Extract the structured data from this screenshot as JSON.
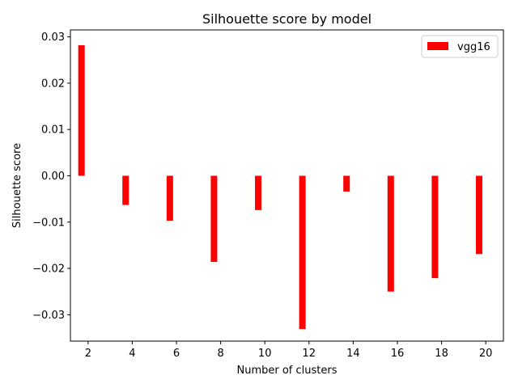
{
  "chart_data": {
    "type": "bar",
    "title": "Silhouette score by model",
    "xlabel": "Number of clusters",
    "ylabel": "Silhouette score",
    "x": [
      1.7,
      3.7,
      5.7,
      7.7,
      9.7,
      11.7,
      13.7,
      15.7,
      17.7,
      19.7
    ],
    "series": [
      {
        "name": "vgg16",
        "color": "#ff0000",
        "values": [
          0.0282,
          -0.0063,
          -0.0097,
          -0.0186,
          -0.0074,
          -0.0331,
          -0.0034,
          -0.025,
          -0.0221,
          -0.0169
        ]
      }
    ],
    "xlim": [
      1.2,
      20.8
    ],
    "ylim": [
      -0.0357,
      0.0315
    ],
    "xticks": [
      2,
      4,
      6,
      8,
      10,
      12,
      14,
      16,
      18,
      20
    ],
    "xtick_labels": [
      "2",
      "4",
      "6",
      "8",
      "10",
      "12",
      "14",
      "16",
      "18",
      "20"
    ],
    "yticks": [
      -0.03,
      -0.02,
      -0.01,
      0.0,
      0.01,
      0.02,
      0.03
    ],
    "ytick_labels": [
      "−0.03",
      "−0.02",
      "−0.01",
      "0.00",
      "0.01",
      "0.02",
      "0.03"
    ],
    "grid": false,
    "legend_position": "top-right"
  }
}
